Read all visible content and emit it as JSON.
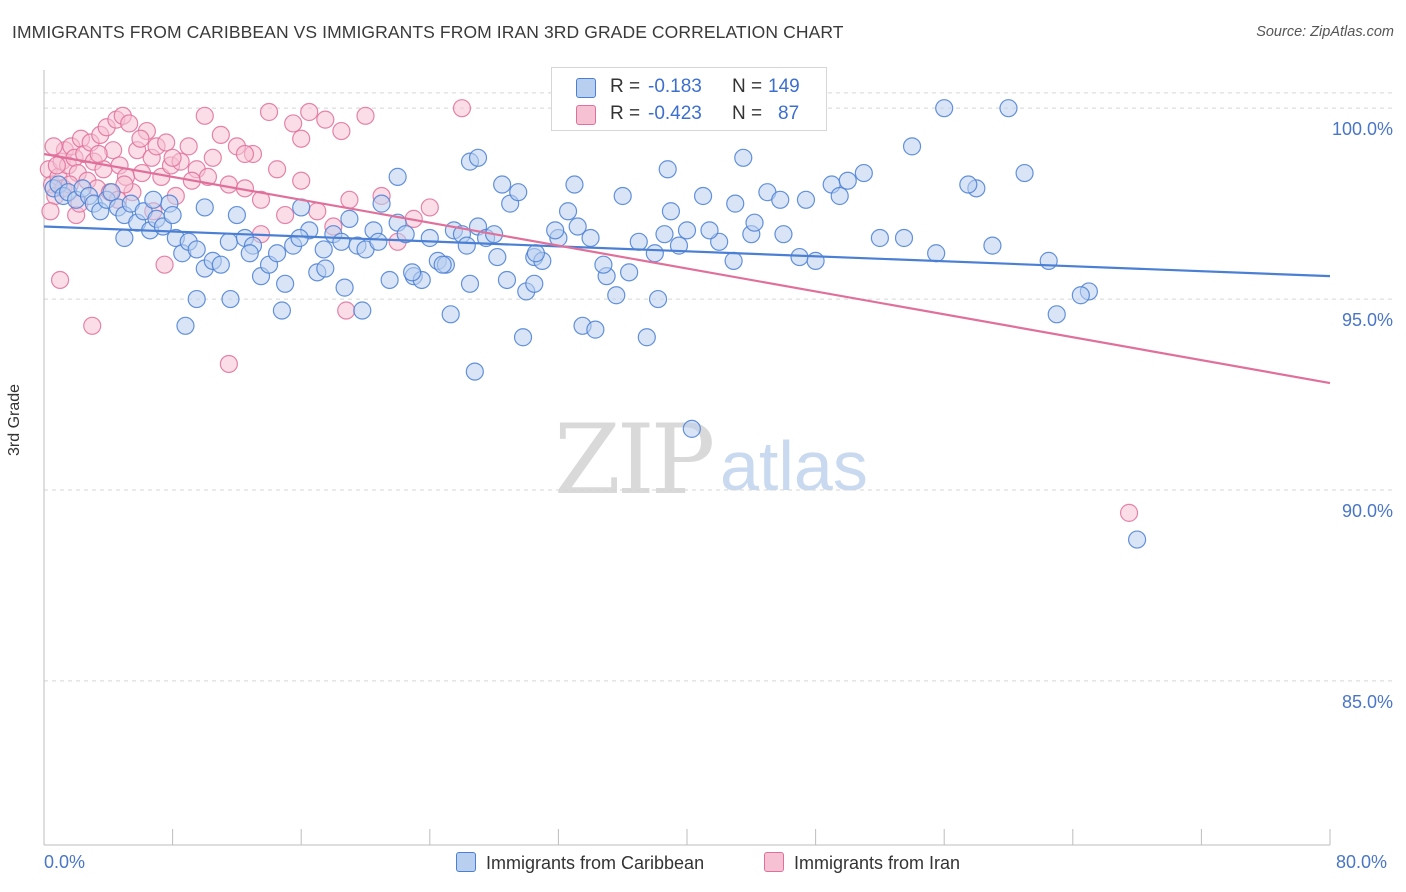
{
  "title": "IMMIGRANTS FROM CARIBBEAN VS IMMIGRANTS FROM IRAN 3RD GRADE CORRELATION CHART",
  "source": "Source: ZipAtlas.com",
  "watermark": {
    "zip": "ZIP",
    "atlas": "atlas"
  },
  "legend": {
    "rows": [
      {
        "r_label": "R =",
        "r_value": "-0.183",
        "n_label": "N =",
        "n_value": "149"
      },
      {
        "r_label": "R =",
        "r_value": "-0.423",
        "n_label": "N =",
        "n_value": "87"
      }
    ]
  },
  "colors": {
    "caribbean": "#4a7fd4",
    "iran": "#e0709a",
    "caribbean_fill": "#b9cff0",
    "iran_fill": "#f6c1d3",
    "tick_text": "#4a76c6"
  },
  "chart_data": {
    "type": "scatter",
    "title": "IMMIGRANTS FROM CARIBBEAN VS IMMIGRANTS FROM IRAN 3RD GRADE CORRELATION CHART",
    "xlabel": "",
    "ylabel": "3rd Grade",
    "xlim": [
      0,
      80
    ],
    "ylim": [
      80.7,
      101.0
    ],
    "x_tick_labels": [
      "0.0%",
      "80.0%"
    ],
    "y_ticks": [
      85,
      90,
      95,
      100
    ],
    "y_tick_labels": [
      "85.0%",
      "90.0%",
      "95.0%",
      "100.0%"
    ],
    "grid": true,
    "legend_position": "top-center",
    "series": [
      {
        "name": "Immigrants from Caribbean",
        "r": -0.183,
        "n": 149,
        "trend": [
          [
            0,
            96.9
          ],
          [
            80,
            95.6
          ]
        ],
        "points": [
          [
            0.6,
            97.9
          ],
          [
            0.9,
            98.0
          ],
          [
            1.2,
            97.7
          ],
          [
            1.5,
            97.8
          ],
          [
            2.0,
            97.6
          ],
          [
            2.4,
            97.9
          ],
          [
            2.8,
            97.7
          ],
          [
            3.1,
            97.5
          ],
          [
            3.5,
            97.3
          ],
          [
            3.9,
            97.6
          ],
          [
            4.2,
            97.8
          ],
          [
            4.6,
            97.4
          ],
          [
            5.0,
            97.2
          ],
          [
            5.4,
            97.5
          ],
          [
            5.8,
            97.0
          ],
          [
            6.2,
            97.3
          ],
          [
            6.6,
            96.8
          ],
          [
            7.0,
            97.1
          ],
          [
            7.4,
            96.9
          ],
          [
            7.8,
            97.5
          ],
          [
            8.2,
            96.6
          ],
          [
            8.6,
            96.2
          ],
          [
            9.0,
            96.5
          ],
          [
            9.5,
            96.3
          ],
          [
            10.0,
            95.8
          ],
          [
            10.5,
            96.0
          ],
          [
            11.0,
            95.9
          ],
          [
            11.5,
            96.5
          ],
          [
            12.0,
            97.2
          ],
          [
            12.5,
            96.6
          ],
          [
            13.0,
            96.4
          ],
          [
            13.5,
            95.6
          ],
          [
            14.0,
            95.9
          ],
          [
            14.5,
            96.2
          ],
          [
            15.0,
            95.4
          ],
          [
            15.5,
            96.4
          ],
          [
            16.0,
            97.4
          ],
          [
            16.5,
            96.8
          ],
          [
            17.0,
            95.7
          ],
          [
            17.5,
            95.8
          ],
          [
            18.0,
            96.7
          ],
          [
            18.5,
            96.5
          ],
          [
            19.0,
            97.1
          ],
          [
            19.5,
            96.4
          ],
          [
            20.0,
            96.3
          ],
          [
            20.5,
            96.8
          ],
          [
            21.0,
            97.5
          ],
          [
            21.5,
            95.5
          ],
          [
            22.0,
            97.0
          ],
          [
            22.5,
            96.7
          ],
          [
            23.0,
            95.6
          ],
          [
            23.5,
            95.5
          ],
          [
            24.0,
            96.6
          ],
          [
            24.5,
            96.0
          ],
          [
            25.0,
            95.9
          ],
          [
            25.5,
            96.8
          ],
          [
            26.0,
            96.7
          ],
          [
            26.5,
            95.4
          ],
          [
            27.0,
            96.9
          ],
          [
            27.5,
            96.6
          ],
          [
            28.0,
            96.7
          ],
          [
            28.5,
            98.0
          ],
          [
            29.0,
            97.5
          ],
          [
            29.5,
            97.8
          ],
          [
            30.0,
            95.2
          ],
          [
            30.5,
            96.1
          ],
          [
            31.0,
            96.0
          ],
          [
            32.0,
            96.6
          ],
          [
            33.0,
            98.0
          ],
          [
            34.0,
            96.6
          ],
          [
            35.0,
            95.6
          ],
          [
            36.0,
            97.7
          ],
          [
            37.0,
            96.5
          ],
          [
            38.0,
            96.2
          ],
          [
            39.0,
            97.3
          ],
          [
            40.0,
            96.8
          ],
          [
            41.0,
            97.7
          ],
          [
            42.0,
            96.5
          ],
          [
            43.0,
            97.5
          ],
          [
            44.0,
            96.7
          ],
          [
            45.0,
            97.8
          ],
          [
            46.0,
            96.7
          ],
          [
            47.0,
            96.1
          ],
          [
            48.0,
            96.0
          ],
          [
            49.0,
            98.0
          ],
          [
            50.0,
            98.1
          ],
          [
            51.0,
            98.3
          ],
          [
            52.0,
            96.6
          ],
          [
            54.0,
            99.0
          ],
          [
            56.0,
            100.0
          ],
          [
            58.0,
            97.9
          ],
          [
            59.0,
            96.4
          ],
          [
            60.0,
            100.0
          ],
          [
            61.0,
            98.3
          ],
          [
            63.0,
            94.6
          ],
          [
            65.0,
            95.2
          ],
          [
            68.0,
            88.7
          ],
          [
            33.5,
            94.3
          ],
          [
            34.3,
            94.2
          ],
          [
            37.5,
            94.0
          ],
          [
            38.2,
            95.0
          ],
          [
            40.3,
            91.6
          ],
          [
            26.8,
            93.1
          ],
          [
            25.3,
            94.6
          ],
          [
            29.8,
            94.0
          ],
          [
            18.7,
            95.3
          ],
          [
            19.8,
            94.7
          ],
          [
            14.8,
            94.7
          ],
          [
            11.6,
            95.0
          ],
          [
            9.5,
            95.0
          ],
          [
            8.8,
            94.3
          ],
          [
            5.0,
            96.6
          ],
          [
            6.8,
            97.6
          ],
          [
            8.0,
            97.2
          ],
          [
            10.0,
            97.4
          ],
          [
            12.8,
            96.2
          ],
          [
            15.9,
            96.6
          ],
          [
            17.4,
            96.3
          ],
          [
            20.8,
            96.5
          ],
          [
            22.9,
            95.7
          ],
          [
            24.8,
            95.9
          ],
          [
            26.3,
            96.4
          ],
          [
            28.8,
            95.5
          ],
          [
            30.6,
            96.2
          ],
          [
            31.8,
            96.8
          ],
          [
            33.2,
            96.9
          ],
          [
            34.8,
            95.9
          ],
          [
            36.4,
            95.7
          ],
          [
            38.6,
            96.7
          ],
          [
            39.5,
            96.4
          ],
          [
            41.4,
            96.8
          ],
          [
            42.9,
            96.0
          ],
          [
            44.2,
            97.0
          ],
          [
            45.8,
            97.6
          ],
          [
            47.4,
            97.6
          ],
          [
            49.5,
            97.7
          ],
          [
            53.5,
            96.6
          ],
          [
            55.5,
            96.2
          ],
          [
            57.5,
            98.0
          ],
          [
            62.5,
            96.0
          ],
          [
            64.5,
            95.1
          ],
          [
            43.5,
            98.7
          ],
          [
            38.8,
            98.4
          ],
          [
            26.5,
            98.6
          ],
          [
            22.0,
            98.2
          ],
          [
            30.5,
            95.4
          ],
          [
            35.6,
            95.1
          ],
          [
            28.2,
            96.1
          ],
          [
            32.6,
            97.3
          ],
          [
            27.0,
            98.7
          ]
        ]
      },
      {
        "name": "Immigrants from Iran",
        "r": -0.423,
        "n": 87,
        "trend": [
          [
            0,
            98.8
          ],
          [
            80,
            92.8
          ]
        ],
        "points": [
          [
            0.3,
            98.4
          ],
          [
            0.5,
            98.0
          ],
          [
            0.7,
            97.7
          ],
          [
            0.9,
            98.2
          ],
          [
            1.1,
            98.6
          ],
          [
            1.3,
            98.9
          ],
          [
            1.5,
            98.5
          ],
          [
            1.7,
            99.0
          ],
          [
            1.9,
            98.7
          ],
          [
            2.1,
            98.3
          ],
          [
            2.3,
            99.2
          ],
          [
            2.5,
            98.8
          ],
          [
            2.7,
            98.1
          ],
          [
            2.9,
            99.1
          ],
          [
            3.1,
            98.6
          ],
          [
            3.3,
            97.9
          ],
          [
            3.5,
            99.3
          ],
          [
            3.7,
            98.4
          ],
          [
            3.9,
            99.5
          ],
          [
            4.1,
            97.8
          ],
          [
            4.3,
            98.9
          ],
          [
            4.5,
            99.7
          ],
          [
            4.7,
            98.5
          ],
          [
            4.9,
            99.8
          ],
          [
            5.1,
            98.2
          ],
          [
            5.3,
            99.6
          ],
          [
            5.5,
            97.8
          ],
          [
            5.8,
            98.9
          ],
          [
            6.1,
            98.3
          ],
          [
            6.4,
            99.4
          ],
          [
            6.7,
            98.7
          ],
          [
            7.0,
            99.0
          ],
          [
            7.3,
            98.2
          ],
          [
            7.6,
            99.1
          ],
          [
            7.9,
            98.5
          ],
          [
            8.2,
            97.7
          ],
          [
            8.5,
            98.6
          ],
          [
            9.0,
            99.0
          ],
          [
            9.5,
            98.4
          ],
          [
            10.0,
            99.8
          ],
          [
            10.5,
            98.7
          ],
          [
            11.0,
            99.3
          ],
          [
            11.5,
            98.0
          ],
          [
            12.0,
            99.0
          ],
          [
            12.5,
            97.9
          ],
          [
            13.0,
            98.8
          ],
          [
            13.5,
            97.6
          ],
          [
            14.0,
            99.9
          ],
          [
            14.5,
            98.4
          ],
          [
            15.0,
            97.2
          ],
          [
            15.5,
            99.6
          ],
          [
            16.0,
            98.1
          ],
          [
            16.5,
            99.9
          ],
          [
            17.0,
            97.3
          ],
          [
            17.5,
            99.7
          ],
          [
            18.0,
            96.9
          ],
          [
            18.5,
            99.4
          ],
          [
            19.0,
            97.6
          ],
          [
            20.0,
            99.8
          ],
          [
            21.0,
            97.7
          ],
          [
            22.0,
            96.5
          ],
          [
            23.0,
            97.1
          ],
          [
            24.0,
            97.4
          ],
          [
            1.0,
            95.5
          ],
          [
            3.0,
            94.3
          ],
          [
            7.5,
            95.9
          ],
          [
            11.5,
            93.3
          ],
          [
            18.8,
            94.7
          ],
          [
            2.0,
            97.2
          ],
          [
            4.6,
            97.6
          ],
          [
            6.8,
            97.3
          ],
          [
            9.2,
            98.1
          ],
          [
            12.5,
            98.8
          ],
          [
            16.0,
            99.2
          ],
          [
            0.4,
            97.3
          ],
          [
            0.6,
            99.0
          ],
          [
            0.8,
            98.5
          ],
          [
            1.2,
            97.9
          ],
          [
            1.6,
            98.0
          ],
          [
            2.2,
            97.5
          ],
          [
            3.4,
            98.8
          ],
          [
            5.0,
            98.0
          ],
          [
            6.0,
            99.2
          ],
          [
            8.0,
            98.7
          ],
          [
            10.2,
            98.2
          ],
          [
            13.5,
            96.7
          ],
          [
            26.0,
            100.0
          ],
          [
            67.5,
            89.4
          ]
        ]
      }
    ]
  },
  "bottom_legend": [
    "Immigrants from Caribbean",
    "Immigrants from Iran"
  ]
}
